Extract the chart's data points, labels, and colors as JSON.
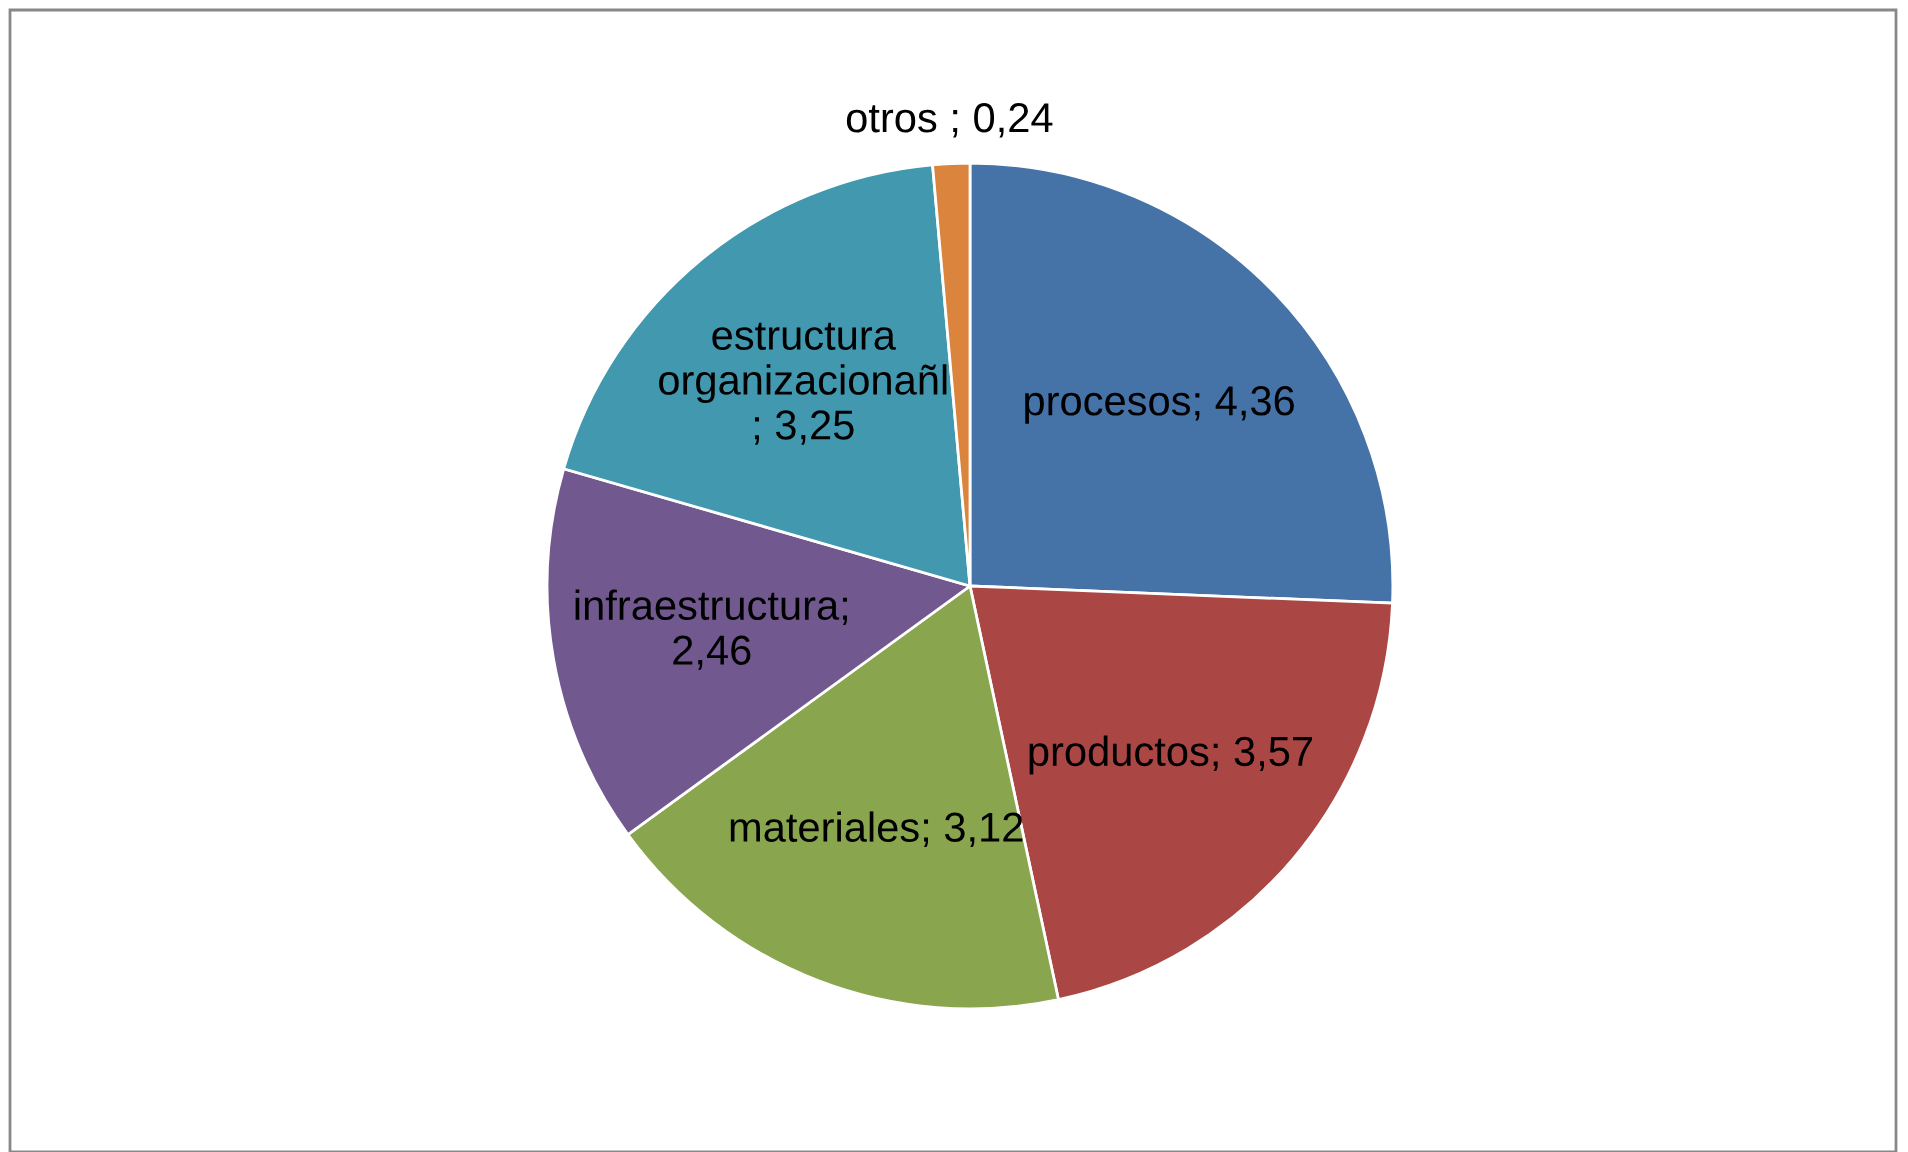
{
  "chart_data": {
    "type": "pie",
    "categories": [
      "procesos",
      "productos",
      "materiales",
      "infraestructura",
      "estructura organizacionañl",
      "otros"
    ],
    "values": [
      4.36,
      3.57,
      3.12,
      2.46,
      3.25,
      0.24
    ],
    "colors": [
      "#4572a7",
      "#aa4643",
      "#89a54e",
      "#71588f",
      "#4198af",
      "#db843d"
    ],
    "value_labels": [
      "; 4,36",
      "; 3,57",
      "; 3,12",
      ";\n2,46",
      "\n; 3,25",
      " ; 0,24"
    ],
    "legend": false
  }
}
